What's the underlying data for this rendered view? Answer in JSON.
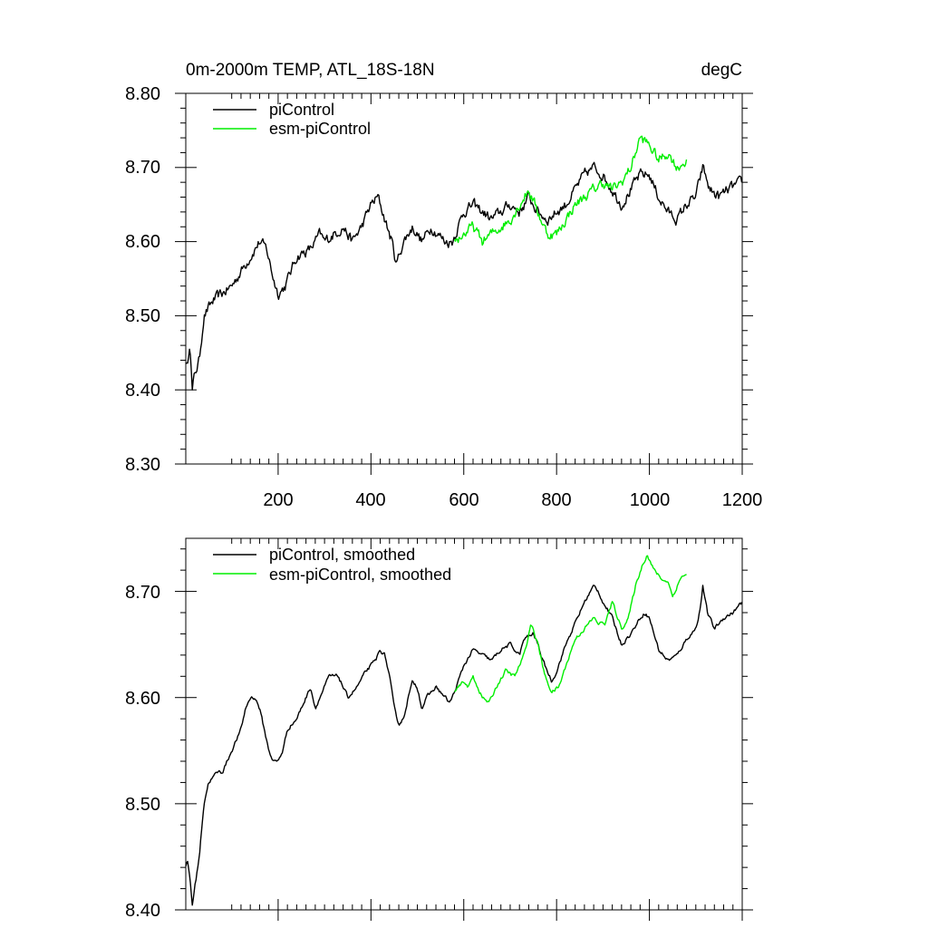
{
  "header": {
    "title": "0m-2000m TEMP, ATL_18S-18N",
    "units": "degC"
  },
  "colors": {
    "piControl": "#000000",
    "esm_piControl": "#00ee00"
  },
  "chart_data": [
    {
      "type": "line",
      "title": "0m-2000m TEMP, ATL_18S-18N",
      "units": "degC",
      "xlim": [
        1,
        1200
      ],
      "ylim": [
        8.3,
        8.8
      ],
      "x_ticks": [
        200,
        400,
        600,
        800,
        1000,
        1200
      ],
      "x_tick_labels": [
        "200",
        "400",
        "600",
        "800",
        "1000",
        "1200"
      ],
      "y_ticks": [
        8.3,
        8.4,
        8.5,
        8.6,
        8.7,
        8.8
      ],
      "y_tick_labels": [
        "8.30",
        "8.40",
        "8.50",
        "8.60",
        "8.70",
        "8.80"
      ],
      "legend": "top-left",
      "legend_labels": [
        "piControl",
        "esm-piControl"
      ],
      "noise": 0.012,
      "series": [
        {
          "name": "piControl",
          "color_key": "piControl",
          "x_start": 1,
          "x_end": 1200,
          "anchors": [
            [
              1,
              8.44
            ],
            [
              5,
              8.43
            ],
            [
              10,
              8.47
            ],
            [
              15,
              8.4
            ],
            [
              20,
              8.42
            ],
            [
              30,
              8.44
            ],
            [
              40,
              8.5
            ],
            [
              60,
              8.52
            ],
            [
              80,
              8.53
            ],
            [
              100,
              8.54
            ],
            [
              120,
              8.56
            ],
            [
              140,
              8.58
            ],
            [
              160,
              8.6
            ],
            [
              175,
              8.59
            ],
            [
              190,
              8.55
            ],
            [
              200,
              8.53
            ],
            [
              215,
              8.54
            ],
            [
              240,
              8.58
            ],
            [
              270,
              8.59
            ],
            [
              290,
              8.61
            ],
            [
              300,
              8.6
            ],
            [
              320,
              8.61
            ],
            [
              340,
              8.62
            ],
            [
              360,
              8.6
            ],
            [
              380,
              8.62
            ],
            [
              400,
              8.65
            ],
            [
              415,
              8.66
            ],
            [
              430,
              8.63
            ],
            [
              445,
              8.6
            ],
            [
              455,
              8.57
            ],
            [
              470,
              8.6
            ],
            [
              490,
              8.62
            ],
            [
              510,
              8.6
            ],
            [
              530,
              8.62
            ],
            [
              560,
              8.6
            ],
            [
              575,
              8.6
            ],
            [
              600,
              8.64
            ],
            [
              620,
              8.65
            ],
            [
              640,
              8.64
            ],
            [
              660,
              8.63
            ],
            [
              680,
              8.64
            ],
            [
              700,
              8.65
            ],
            [
              720,
              8.64
            ],
            [
              740,
              8.66
            ],
            [
              760,
              8.64
            ],
            [
              780,
              8.63
            ],
            [
              800,
              8.64
            ],
            [
              820,
              8.65
            ],
            [
              840,
              8.67
            ],
            [
              860,
              8.69
            ],
            [
              880,
              8.7
            ],
            [
              900,
              8.69
            ],
            [
              920,
              8.67
            ],
            [
              940,
              8.65
            ],
            [
              960,
              8.67
            ],
            [
              980,
              8.69
            ],
            [
              1000,
              8.69
            ],
            [
              1020,
              8.66
            ],
            [
              1040,
              8.64
            ],
            [
              1060,
              8.63
            ],
            [
              1080,
              8.65
            ],
            [
              1100,
              8.66
            ],
            [
              1115,
              8.7
            ],
            [
              1130,
              8.67
            ],
            [
              1150,
              8.66
            ],
            [
              1170,
              8.67
            ],
            [
              1200,
              8.68
            ]
          ]
        },
        {
          "name": "esm-piControl",
          "color_key": "esm_piControl",
          "x_start": 580,
          "x_end": 1080,
          "anchors": [
            [
              580,
              8.6
            ],
            [
              600,
              8.61
            ],
            [
              620,
              8.62
            ],
            [
              640,
              8.6
            ],
            [
              660,
              8.61
            ],
            [
              680,
              8.62
            ],
            [
              700,
              8.63
            ],
            [
              720,
              8.65
            ],
            [
              740,
              8.67
            ],
            [
              760,
              8.64
            ],
            [
              780,
              8.61
            ],
            [
              800,
              8.61
            ],
            [
              820,
              8.63
            ],
            [
              840,
              8.65
            ],
            [
              860,
              8.66
            ],
            [
              880,
              8.67
            ],
            [
              900,
              8.68
            ],
            [
              920,
              8.67
            ],
            [
              940,
              8.68
            ],
            [
              960,
              8.7
            ],
            [
              980,
              8.74
            ],
            [
              1000,
              8.73
            ],
            [
              1020,
              8.71
            ],
            [
              1040,
              8.72
            ],
            [
              1060,
              8.7
            ],
            [
              1080,
              8.71
            ]
          ]
        }
      ]
    },
    {
      "type": "line",
      "xlim": [
        1,
        1200
      ],
      "ylim": [
        8.4,
        8.75
      ],
      "x_ticks": [
        200,
        400,
        600,
        800,
        1000,
        1200
      ],
      "y_ticks": [
        8.4,
        8.5,
        8.6,
        8.7
      ],
      "y_tick_labels": [
        "8.40",
        "8.50",
        "8.60",
        "8.70"
      ],
      "legend": "top-left",
      "legend_labels": [
        "piControl, smoothed",
        "esm-piControl, smoothed"
      ],
      "noise": 0.003,
      "series": [
        {
          "name": "piControl, smoothed",
          "color_key": "piControl",
          "x_start": 1,
          "x_end": 1200,
          "anchors": [
            [
              1,
              8.44
            ],
            [
              5,
              8.445
            ],
            [
              10,
              8.43
            ],
            [
              15,
              8.405
            ],
            [
              20,
              8.42
            ],
            [
              30,
              8.45
            ],
            [
              40,
              8.5
            ],
            [
              50,
              8.52
            ],
            [
              60,
              8.525
            ],
            [
              70,
              8.53
            ],
            [
              80,
              8.53
            ],
            [
              90,
              8.54
            ],
            [
              100,
              8.55
            ],
            [
              110,
              8.56
            ],
            [
              120,
              8.57
            ],
            [
              130,
              8.59
            ],
            [
              140,
              8.6
            ],
            [
              150,
              8.6
            ],
            [
              160,
              8.59
            ],
            [
              170,
              8.57
            ],
            [
              180,
              8.55
            ],
            [
              190,
              8.54
            ],
            [
              200,
              8.54
            ],
            [
              210,
              8.55
            ],
            [
              220,
              8.57
            ],
            [
              240,
              8.58
            ],
            [
              250,
              8.59
            ],
            [
              260,
              8.6
            ],
            [
              270,
              8.61
            ],
            [
              280,
              8.59
            ],
            [
              290,
              8.6
            ],
            [
              300,
              8.61
            ],
            [
              310,
              8.62
            ],
            [
              330,
              8.62
            ],
            [
              350,
              8.6
            ],
            [
              370,
              8.61
            ],
            [
              390,
              8.625
            ],
            [
              410,
              8.635
            ],
            [
              420,
              8.645
            ],
            [
              430,
              8.64
            ],
            [
              440,
              8.62
            ],
            [
              450,
              8.59
            ],
            [
              460,
              8.575
            ],
            [
              470,
              8.58
            ],
            [
              480,
              8.6
            ],
            [
              490,
              8.615
            ],
            [
              500,
              8.61
            ],
            [
              510,
              8.59
            ],
            [
              520,
              8.6
            ],
            [
              540,
              8.61
            ],
            [
              560,
              8.6
            ],
            [
              570,
              8.595
            ],
            [
              580,
              8.605
            ],
            [
              600,
              8.63
            ],
            [
              620,
              8.645
            ],
            [
              640,
              8.64
            ],
            [
              660,
              8.635
            ],
            [
              680,
              8.645
            ],
            [
              700,
              8.65
            ],
            [
              720,
              8.64
            ],
            [
              730,
              8.655
            ],
            [
              750,
              8.66
            ],
            [
              760,
              8.65
            ],
            [
              770,
              8.635
            ],
            [
              780,
              8.625
            ],
            [
              790,
              8.615
            ],
            [
              800,
              8.625
            ],
            [
              820,
              8.65
            ],
            [
              840,
              8.67
            ],
            [
              860,
              8.69
            ],
            [
              880,
              8.705
            ],
            [
              890,
              8.7
            ],
            [
              900,
              8.69
            ],
            [
              920,
              8.675
            ],
            [
              940,
              8.65
            ],
            [
              960,
              8.66
            ],
            [
              980,
              8.675
            ],
            [
              990,
              8.68
            ],
            [
              1000,
              8.675
            ],
            [
              1010,
              8.66
            ],
            [
              1020,
              8.645
            ],
            [
              1040,
              8.635
            ],
            [
              1060,
              8.64
            ],
            [
              1080,
              8.655
            ],
            [
              1100,
              8.665
            ],
            [
              1110,
              8.685
            ],
            [
              1115,
              8.705
            ],
            [
              1125,
              8.68
            ],
            [
              1140,
              8.665
            ],
            [
              1160,
              8.675
            ],
            [
              1180,
              8.68
            ],
            [
              1200,
              8.69
            ]
          ]
        },
        {
          "name": "esm-piControl, smoothed",
          "color_key": "esm_piControl",
          "x_start": 580,
          "x_end": 1080,
          "anchors": [
            [
              580,
              8.605
            ],
            [
              600,
              8.615
            ],
            [
              610,
              8.61
            ],
            [
              620,
              8.62
            ],
            [
              640,
              8.6
            ],
            [
              655,
              8.595
            ],
            [
              670,
              8.61
            ],
            [
              690,
              8.625
            ],
            [
              710,
              8.62
            ],
            [
              730,
              8.64
            ],
            [
              745,
              8.67
            ],
            [
              760,
              8.65
            ],
            [
              775,
              8.62
            ],
            [
              790,
              8.605
            ],
            [
              805,
              8.61
            ],
            [
              820,
              8.63
            ],
            [
              840,
              8.655
            ],
            [
              860,
              8.665
            ],
            [
              880,
              8.675
            ],
            [
              890,
              8.67
            ],
            [
              905,
              8.67
            ],
            [
              920,
              8.69
            ],
            [
              940,
              8.665
            ],
            [
              955,
              8.675
            ],
            [
              970,
              8.705
            ],
            [
              985,
              8.725
            ],
            [
              995,
              8.735
            ],
            [
              1010,
              8.72
            ],
            [
              1020,
              8.715
            ],
            [
              1030,
              8.71
            ],
            [
              1040,
              8.71
            ],
            [
              1050,
              8.695
            ],
            [
              1060,
              8.705
            ],
            [
              1070,
              8.715
            ],
            [
              1080,
              8.715
            ]
          ]
        }
      ]
    }
  ]
}
